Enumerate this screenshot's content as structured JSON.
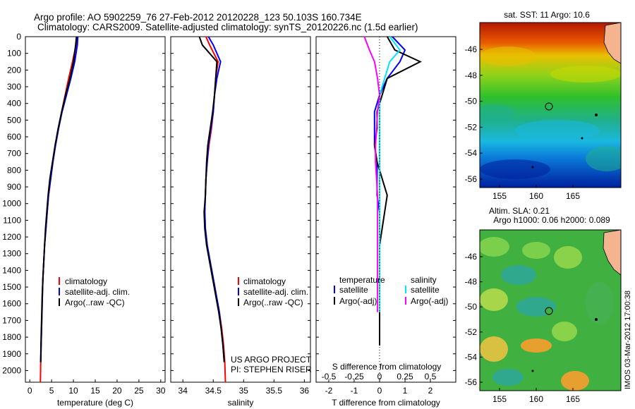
{
  "header": {
    "line1": "Argo profile: AO 5902259_76 27-Feb-2012 20120228_123 50.103S 160.734E",
    "line2": "Climatology: CARS2009. Satellite-adjusted climatology: synTS_20120226.nc (1.5d earlier)"
  },
  "colors": {
    "clim": "#ff0000",
    "sat": "#0000ff",
    "argo": "#000000",
    "sat_salt": "#00e5ff",
    "argo_salt": "#ff00ff"
  },
  "depth_ticks": [
    0,
    100,
    200,
    300,
    400,
    500,
    600,
    700,
    800,
    900,
    1000,
    1100,
    1200,
    1300,
    1400,
    1500,
    1600,
    1700,
    1800,
    1900,
    2000
  ],
  "temp_panel": {
    "xlabel": "temperature (deg C)",
    "xticks": [
      0,
      5,
      10,
      15,
      20,
      25,
      30
    ],
    "legend": [
      "climatology",
      "satellite-adj. clim.",
      "Argo(..raw -QC)"
    ]
  },
  "sal_panel": {
    "xlabel": "salinity",
    "xticks": [
      "34",
      "34.5",
      "35",
      "35.5",
      "36"
    ],
    "legend": [
      "climatology",
      "satellite-adj. clim.",
      "Argo(..raw -QC)"
    ],
    "project": "US ARGO PROJECT",
    "pi": "PI: STEPHEN RISER"
  },
  "diff_panel": {
    "xlabel": "T difference from climatology",
    "top_label": "S difference from climatology",
    "top_ticks": [
      "-0.5",
      "-0.25",
      "0",
      "0.25",
      "0.5"
    ],
    "xticks": [
      "-2",
      "-1",
      "0",
      "1",
      "2"
    ],
    "legend_t_title": "temperature",
    "legend_s_title": "salinity",
    "legend_t": [
      "satellite",
      "Argo(-adj)"
    ],
    "legend_s": [
      "satellite",
      "Argo(-adj)"
    ]
  },
  "map_sst": {
    "title": "sat. SST: 11  Argo: 10.6",
    "lat_ticks": [
      "-46",
      "-48",
      "-50",
      "-52",
      "-54",
      "-56"
    ],
    "lon_ticks": [
      "155",
      "160",
      "165"
    ]
  },
  "map_sla": {
    "title1": "Altim. SLA: 0.21",
    "title2": "Argo h1000: 0.06 h2000: 0.089",
    "lat_ticks": [
      "-46",
      "-48",
      "-50",
      "-52",
      "-54",
      "-56"
    ],
    "lon_ticks": [
      "155",
      "160",
      "165"
    ]
  },
  "side_stamp": "IMOS 03-Mar-2012 17:00:38",
  "chart_data": [
    {
      "type": "line",
      "xlabel": "temperature (deg C)",
      "ylabel": "",
      "xlim": [
        -1,
        31
      ],
      "ylim": [
        2070,
        0
      ],
      "series": [
        {
          "name": "climatology",
          "x": [
            10.9,
            10.6,
            9.8,
            8.9,
            8.1,
            7.3,
            6.6,
            5.9,
            5.3,
            4.8,
            4.3,
            4.0,
            3.7,
            3.4,
            3.2,
            3.0,
            2.9,
            2.8,
            2.7,
            2.6,
            2.5,
            2.45
          ],
          "y": [
            0,
            50,
            150,
            250,
            350,
            450,
            550,
            650,
            750,
            850,
            950,
            1050,
            1150,
            1250,
            1350,
            1450,
            1550,
            1650,
            1750,
            1850,
            1950,
            2070
          ]
        },
        {
          "name": "satellite-adj. clim.",
          "x": [
            11.0,
            10.9,
            10.3,
            9.4,
            8.4,
            7.4,
            6.6,
            5.9,
            5.3,
            4.8,
            4.3,
            4.0,
            3.7,
            3.4,
            3.2,
            3.0,
            2.9,
            2.8,
            2.7,
            2.6,
            2.5
          ],
          "y": [
            0,
            50,
            150,
            250,
            350,
            450,
            550,
            650,
            750,
            850,
            950,
            1050,
            1150,
            1250,
            1350,
            1450,
            1550,
            1650,
            1750,
            1850,
            1950
          ]
        },
        {
          "name": "Argo(..raw -QC)",
          "x": [
            10.7,
            10.5,
            10.0,
            9.2,
            8.2,
            7.3,
            6.5,
            5.8,
            5.2,
            4.6,
            4.2,
            3.9,
            3.6,
            3.4,
            3.2,
            3.0,
            2.85,
            2.75,
            2.65,
            2.55,
            2.5
          ],
          "y": [
            0,
            50,
            150,
            250,
            350,
            450,
            550,
            650,
            750,
            850,
            950,
            1050,
            1150,
            1250,
            1350,
            1450,
            1550,
            1650,
            1750,
            1850,
            1950
          ]
        }
      ]
    },
    {
      "type": "line",
      "xlabel": "salinity",
      "ylabel": "",
      "xlim": [
        33.8,
        36.1
      ],
      "ylim": [
        2070,
        0
      ],
      "series": [
        {
          "name": "climatology",
          "x": [
            34.38,
            34.44,
            34.58,
            34.54,
            34.52,
            34.5,
            34.47,
            34.43,
            34.4,
            34.38,
            34.37,
            34.36,
            34.37,
            34.4,
            34.45,
            34.5,
            34.55,
            34.6,
            34.64,
            34.67,
            34.69,
            34.7
          ],
          "y": [
            0,
            50,
            150,
            250,
            350,
            450,
            550,
            650,
            750,
            850,
            950,
            1050,
            1150,
            1250,
            1350,
            1450,
            1550,
            1650,
            1750,
            1850,
            1950,
            2070
          ]
        },
        {
          "name": "satellite-adj. clim.",
          "x": [
            34.42,
            34.5,
            34.62,
            34.56,
            34.52,
            34.5,
            34.46,
            34.42,
            34.4,
            34.38,
            34.37,
            34.36,
            34.37,
            34.4,
            34.45,
            34.5,
            34.55,
            34.6,
            34.63,
            34.66,
            34.68
          ],
          "y": [
            0,
            50,
            150,
            250,
            350,
            450,
            550,
            650,
            750,
            850,
            950,
            1050,
            1150,
            1250,
            1350,
            1450,
            1550,
            1650,
            1750,
            1850,
            1950
          ]
        },
        {
          "name": "Argo(..raw -QC)",
          "x": [
            34.27,
            34.32,
            34.56,
            34.54,
            34.52,
            34.49,
            34.45,
            34.41,
            34.39,
            34.38,
            34.37,
            34.35,
            34.36,
            34.39,
            34.44,
            34.49,
            34.54,
            34.59,
            34.63,
            34.66,
            34.68
          ],
          "y": [
            0,
            50,
            150,
            250,
            350,
            450,
            550,
            650,
            750,
            850,
            950,
            1050,
            1150,
            1250,
            1350,
            1450,
            1550,
            1650,
            1750,
            1850,
            1950
          ]
        }
      ]
    },
    {
      "type": "line",
      "xlabel": "T difference from climatology",
      "ylabel": "",
      "xlim": [
        -2.5,
        3
      ],
      "ylim": [
        2070,
        0
      ],
      "series": [
        {
          "name": "satellite",
          "x": [
            0.5,
            1.0,
            0.8,
            0.3,
            0.0,
            -0.2,
            -0.2,
            -0.2,
            -0.1,
            -0.1,
            -0.1,
            0.0,
            0.0,
            0.0,
            0.0,
            0.0,
            0.0,
            0.0,
            0.0,
            0.0
          ],
          "y": [
            0,
            80,
            150,
            250,
            350,
            450,
            550,
            650,
            750,
            850,
            950,
            1050,
            1150,
            1250,
            1350,
            1450,
            1550,
            1650,
            1750,
            1850
          ]
        },
        {
          "name": "Argo(-adj)",
          "x": [
            0.3,
            0.6,
            1.6,
            0.3,
            0.1,
            -0.1,
            -0.1,
            -0.2,
            -0.1,
            0.1,
            0.3,
            0.2,
            0.1,
            0.0,
            0.0,
            0.0,
            0.0,
            0.0,
            0.0,
            0.0
          ],
          "y": [
            0,
            80,
            150,
            250,
            350,
            450,
            550,
            650,
            750,
            850,
            950,
            1050,
            1150,
            1250,
            1350,
            1450,
            1550,
            1650,
            1750,
            1850
          ]
        },
        {
          "name": "S diff satellite",
          "x": [
            0.1,
            0.2,
            0.1,
            0.05,
            0.0,
            0.0,
            0.0,
            0.0,
            0.0,
            0.0,
            0.0,
            0.0,
            0.0,
            0.0,
            0.0,
            0.0,
            0.0,
            0.0
          ],
          "y": [
            0,
            80,
            150,
            250,
            350,
            450,
            550,
            650,
            750,
            850,
            950,
            1050,
            1150,
            1250,
            1350,
            1450,
            1550,
            1650
          ]
        },
        {
          "name": "S diff Argo",
          "x": [
            -0.15,
            -0.1,
            -0.05,
            -0.02,
            0.0,
            -0.02,
            -0.03,
            -0.04,
            -0.04,
            -0.03,
            -0.02,
            -0.02,
            -0.02,
            -0.02,
            -0.02,
            -0.02,
            -0.02,
            -0.02
          ],
          "y": [
            0,
            80,
            150,
            250,
            350,
            450,
            550,
            650,
            750,
            850,
            950,
            1050,
            1150,
            1250,
            1350,
            1450,
            1550,
            1650
          ]
        }
      ]
    }
  ]
}
